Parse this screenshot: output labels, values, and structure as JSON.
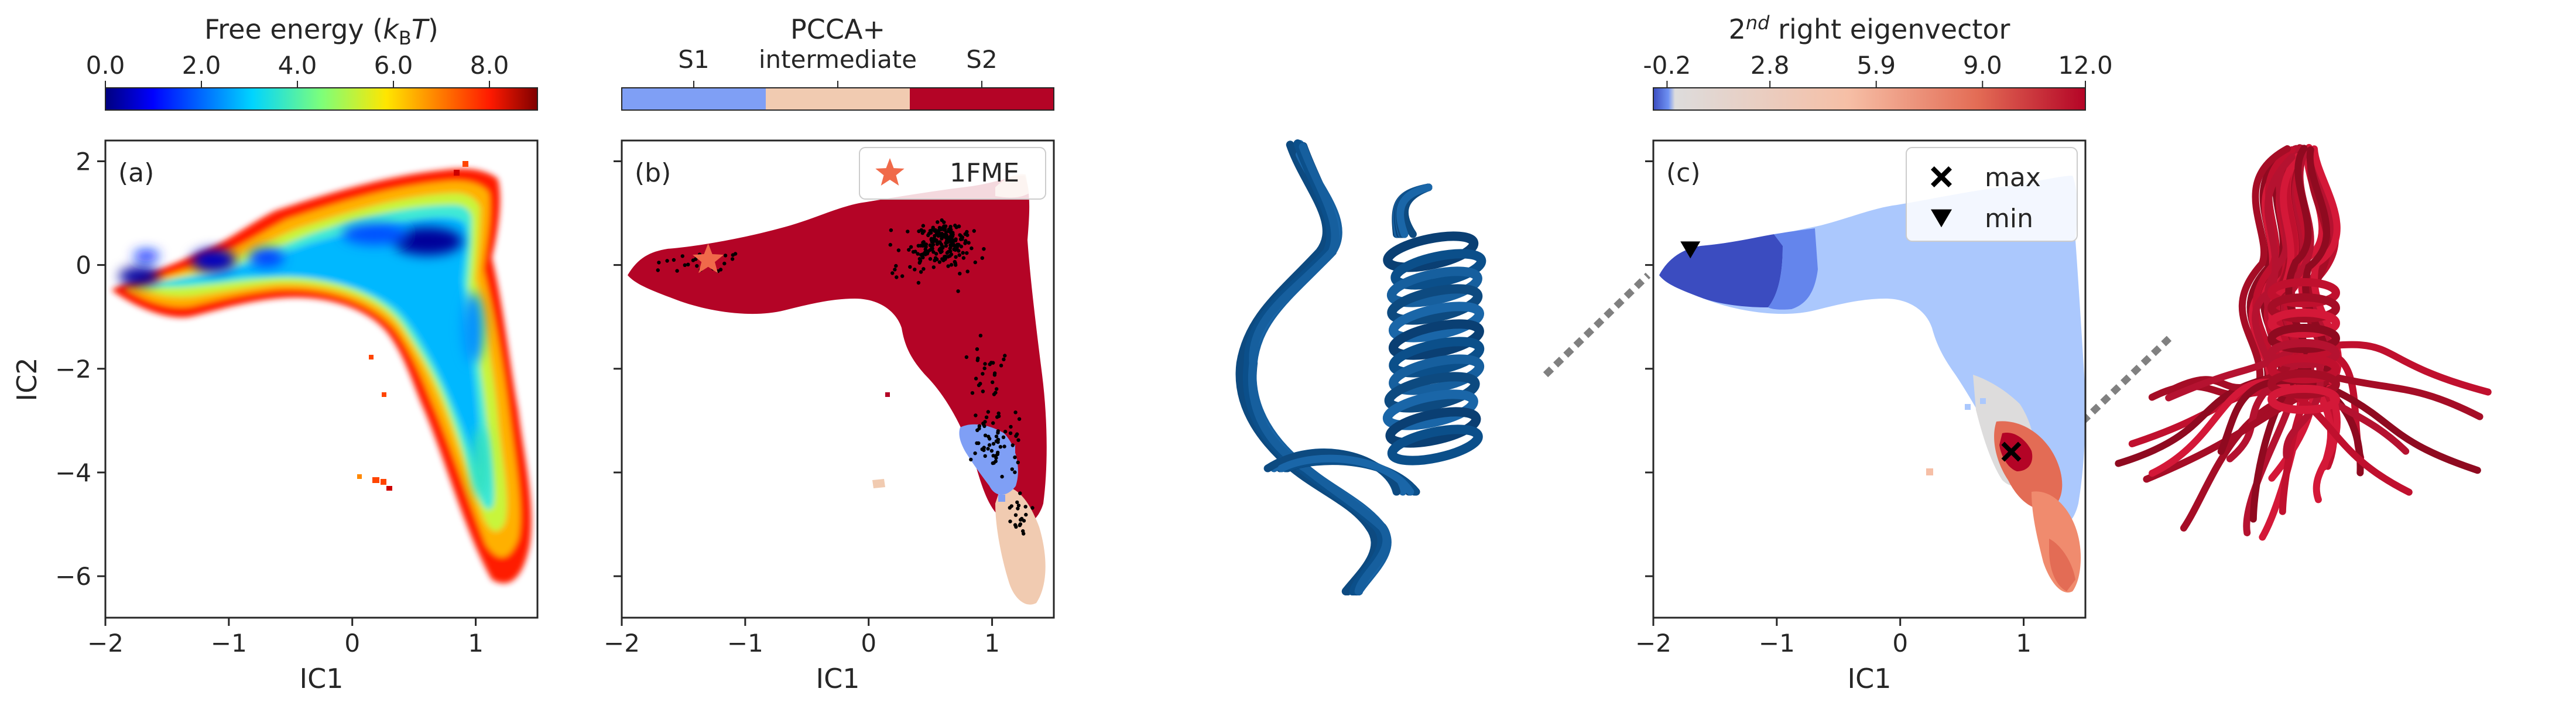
{
  "chart_data": [
    {
      "id": "a",
      "type": "heatmap",
      "panel_label": "(a)",
      "xlabel": "IC1",
      "ylabel": "IC2",
      "xlim": [
        -2,
        1.5
      ],
      "ylim": [
        -6.8,
        2.4
      ],
      "xticks": [
        -2,
        -1,
        0,
        1
      ],
      "yticks": [
        2,
        0,
        -2,
        -4,
        -6
      ],
      "colorbar": {
        "label_pre": "Free energy (",
        "label_k": "k",
        "label_sub": "B",
        "label_post": "T)",
        "ticks": [
          "0.0",
          "2.0",
          "4.0",
          "6.0",
          "8.0"
        ],
        "tick_values": [
          0,
          2,
          4,
          6,
          8
        ],
        "range": [
          0,
          9
        ],
        "colormap": "jet"
      },
      "approx_minima": [
        {
          "x": -1.7,
          "y": -0.2,
          "value": 0.3
        },
        {
          "x": -1.15,
          "y": 0.05,
          "value": 1.2
        },
        {
          "x": 0.6,
          "y": 0.35,
          "value": 0.5
        }
      ]
    },
    {
      "id": "b",
      "type": "heatmap",
      "panel_label": "(b)",
      "xlabel": "IC1",
      "xlim": [
        -2,
        1.5
      ],
      "ylim": [
        -6.8,
        2.4
      ],
      "xticks": [
        -2,
        -1,
        0,
        1
      ],
      "colorbar": {
        "title": "PCCA+",
        "categories": [
          "S1",
          "intermediate",
          "S2"
        ],
        "colors": [
          "#7f9ff5",
          "#f1cbb1",
          "#b40426"
        ]
      },
      "legend": {
        "label": "1FME",
        "marker": "star",
        "color": "#f06a4a",
        "position": "upper right"
      },
      "marker_1FME": {
        "x": -1.3,
        "y": 0.1
      }
    },
    {
      "id": "c",
      "type": "heatmap",
      "panel_label": "(c)",
      "xlabel": "IC1",
      "xlim": [
        -2,
        1.5
      ],
      "ylim": [
        -6.8,
        2.4
      ],
      "xticks": [
        -2,
        -1,
        0,
        1
      ],
      "colorbar": {
        "label_pre": "2",
        "label_sup": "nd",
        "label_post": " right eigenvector",
        "ticks": [
          "-0.2",
          "2.8",
          "5.9",
          "9.0",
          "12.0"
        ],
        "tick_values": [
          -0.2,
          2.8,
          5.9,
          9.0,
          12.0
        ],
        "range": [
          -0.6,
          12.0
        ],
        "colormap": "coolwarm"
      },
      "legend": [
        {
          "label": "max",
          "marker": "X",
          "color": "#000000"
        },
        {
          "label": "min",
          "marker": "triangle-down",
          "color": "#000000"
        }
      ],
      "max_point": {
        "x": 0.9,
        "y": -3.6
      },
      "min_point": {
        "x": -1.7,
        "y": 0.3
      }
    }
  ],
  "images": [
    {
      "name": "blue-structure",
      "color": "#0b4f8a",
      "description_hidden": true
    },
    {
      "name": "red-structure",
      "color": "#c0102e",
      "description_hidden": true
    }
  ]
}
